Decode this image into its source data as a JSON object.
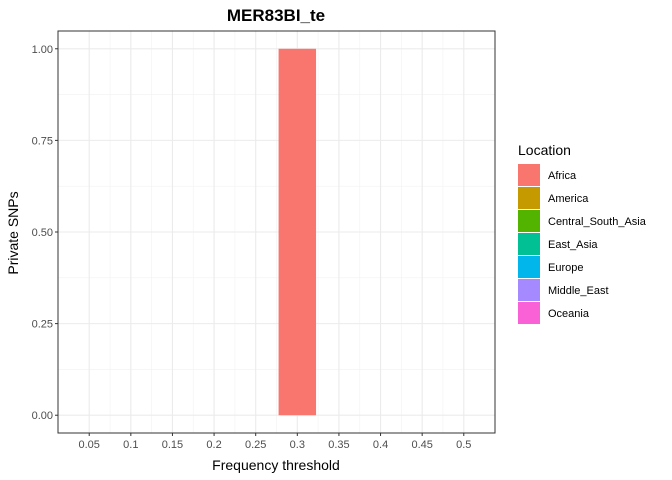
{
  "chart_data": {
    "type": "bar",
    "title": "MER83BI_te",
    "xlabel": "Frequency threshold",
    "ylabel": "Private SNPs",
    "categories": [
      "0.05",
      "0.1",
      "0.15",
      "0.2",
      "0.25",
      "0.3",
      "0.35",
      "0.4",
      "0.45",
      "0.5"
    ],
    "series": [
      {
        "name": "Africa",
        "color": "#F8766D",
        "values": [
          0,
          0,
          0,
          0,
          0,
          1,
          0,
          0,
          0,
          0
        ]
      },
      {
        "name": "America",
        "color": "#C49A00",
        "values": [
          0,
          0,
          0,
          0,
          0,
          0,
          0,
          0,
          0,
          0
        ]
      },
      {
        "name": "Central_South_Asia",
        "color": "#53B400",
        "values": [
          0,
          0,
          0,
          0,
          0,
          0,
          0,
          0,
          0,
          0
        ]
      },
      {
        "name": "East_Asia",
        "color": "#00C094",
        "values": [
          0,
          0,
          0,
          0,
          0,
          0,
          0,
          0,
          0,
          0
        ]
      },
      {
        "name": "Europe",
        "color": "#00B6EB",
        "values": [
          0,
          0,
          0,
          0,
          0,
          0,
          0,
          0,
          0,
          0
        ]
      },
      {
        "name": "Middle_East",
        "color": "#A58AFF",
        "values": [
          0,
          0,
          0,
          0,
          0,
          0,
          0,
          0,
          0,
          0
        ]
      },
      {
        "name": "Oceania",
        "color": "#FB61D7",
        "values": [
          0,
          0,
          0,
          0,
          0,
          0,
          0,
          0,
          0,
          0
        ]
      }
    ],
    "yticks": [
      "0.00",
      "0.25",
      "0.50",
      "0.75",
      "1.00"
    ],
    "ylim": [
      -0.0485,
      1.0485
    ],
    "grid": true,
    "legend": {
      "title": "Location",
      "position": "right"
    }
  }
}
